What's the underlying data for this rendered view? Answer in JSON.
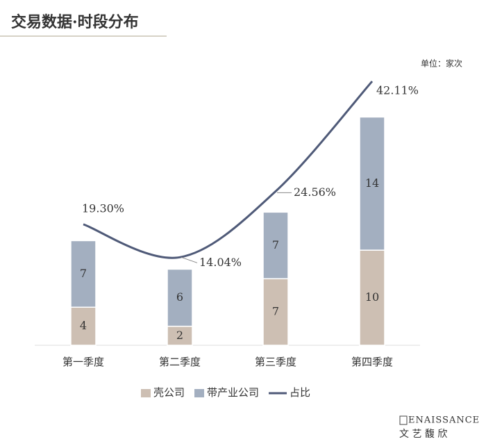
{
  "header": {
    "title": "交易数据·时段分布"
  },
  "chart_data": {
    "type": "bar-line",
    "unit": "单位：家次",
    "categories": [
      "第一季度",
      "第二季度",
      "第三季度",
      "第四季度"
    ],
    "series": [
      {
        "name": "壳公司",
        "color": "#cdbfb3",
        "values": [
          4,
          2,
          7,
          10
        ],
        "stacked": true
      },
      {
        "name": "带产业公司",
        "color": "#a3afc0",
        "values": [
          7,
          6,
          7,
          14
        ],
        "stacked": true
      },
      {
        "name": "占比",
        "color": "#4f5a78",
        "values": [
          19.3,
          14.04,
          24.56,
          42.11
        ],
        "value_labels": [
          "19.30%",
          "14.04%",
          "24.56%",
          "42.11%"
        ],
        "axis": "y2",
        "line": true
      }
    ],
    "ylim": [
      0,
      29
    ],
    "y2lim": [
      0,
      44
    ],
    "legend": "bottom"
  },
  "footer": {
    "brand": "ENAISSANCE",
    "brand_cn": "文 艺 馥 欣"
  }
}
